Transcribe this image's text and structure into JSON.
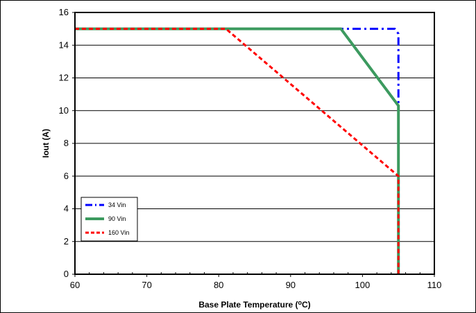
{
  "chart_data": {
    "type": "line",
    "title": "",
    "xlabel": "Base Plate Temperature (oC)",
    "xlabel_main": "Base Plate Temperature (",
    "xlabel_sup": "o",
    "xlabel_end": "C)",
    "ylabel": "Iout (A)",
    "xlim": [
      60,
      110
    ],
    "ylim": [
      0,
      16
    ],
    "x_ticks": [
      60,
      70,
      80,
      90,
      100,
      110
    ],
    "y_ticks": [
      0,
      2,
      4,
      6,
      8,
      10,
      12,
      14,
      16
    ],
    "grid": "horizontal",
    "legend_position": "bottom-left",
    "series": [
      {
        "name": "34 Vin",
        "color": "#0000FF",
        "style": "dash-dot",
        "points": [
          [
            60,
            15
          ],
          [
            104.5,
            15
          ],
          [
            105,
            14.7
          ],
          [
            105,
            0
          ]
        ]
      },
      {
        "name": "90 Vin",
        "color": "#3C9A5F",
        "style": "solid",
        "points": [
          [
            60,
            15
          ],
          [
            97,
            15
          ],
          [
            105,
            10.3
          ],
          [
            105,
            0
          ]
        ]
      },
      {
        "name": "160 Vin",
        "color": "#FF0000",
        "style": "dashed",
        "points": [
          [
            60,
            15
          ],
          [
            81,
            15
          ],
          [
            105,
            6
          ],
          [
            105,
            0
          ]
        ]
      }
    ]
  }
}
